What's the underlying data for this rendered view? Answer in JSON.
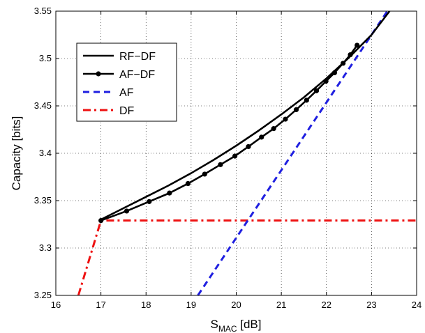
{
  "chart_data": {
    "type": "line",
    "title": "",
    "xlabel": {
      "main": "S",
      "sub": "MAC",
      "rest": " [dB]"
    },
    "ylabel": "Capacity [bits]",
    "xlim": [
      16,
      24
    ],
    "ylim": [
      3.25,
      3.55
    ],
    "xticks": [
      "16",
      "17",
      "18",
      "19",
      "20",
      "21",
      "22",
      "23",
      "24"
    ],
    "yticks": [
      "3.25",
      "3.3",
      "3.35",
      "3.4",
      "3.45",
      "3.5",
      "3.55"
    ],
    "grid": true,
    "legend_position": "top-left",
    "series": [
      {
        "name": "RF−DF",
        "color": "#000000",
        "style": "solid",
        "marker": "none",
        "x": [
          17.0,
          17.5,
          18.0,
          18.5,
          19.0,
          19.5,
          20.0,
          20.5,
          21.0,
          21.5,
          22.0,
          22.5,
          23.0,
          23.4
        ],
        "y": [
          3.33,
          3.342,
          3.354,
          3.366,
          3.379,
          3.393,
          3.408,
          3.424,
          3.441,
          3.459,
          3.479,
          3.501,
          3.525,
          3.55
        ]
      },
      {
        "name": "AF−DF",
        "color": "#000000",
        "style": "solid",
        "marker": "circle",
        "x": [
          17.0,
          17.57,
          18.07,
          18.52,
          18.93,
          19.3,
          19.65,
          19.97,
          20.27,
          20.56,
          20.83,
          21.09,
          21.33,
          21.56,
          21.78,
          21.99,
          22.18,
          22.37,
          22.53,
          22.68
        ],
        "y": [
          3.329,
          3.339,
          3.349,
          3.358,
          3.368,
          3.378,
          3.388,
          3.397,
          3.407,
          3.417,
          3.426,
          3.436,
          3.446,
          3.456,
          3.466,
          3.476,
          3.485,
          3.495,
          3.504,
          3.514
        ]
      },
      {
        "name": "AF",
        "color": "#1f1fe0",
        "style": "dashed",
        "marker": "none",
        "x": [
          19.15,
          23.35
        ],
        "y": [
          3.25,
          3.55
        ]
      },
      {
        "name": "DF",
        "color": "#ee1111",
        "style": "dashdot",
        "marker": "none",
        "x": [
          16.5,
          17.0,
          24.0
        ],
        "y": [
          3.25,
          3.329,
          3.329
        ]
      }
    ]
  }
}
